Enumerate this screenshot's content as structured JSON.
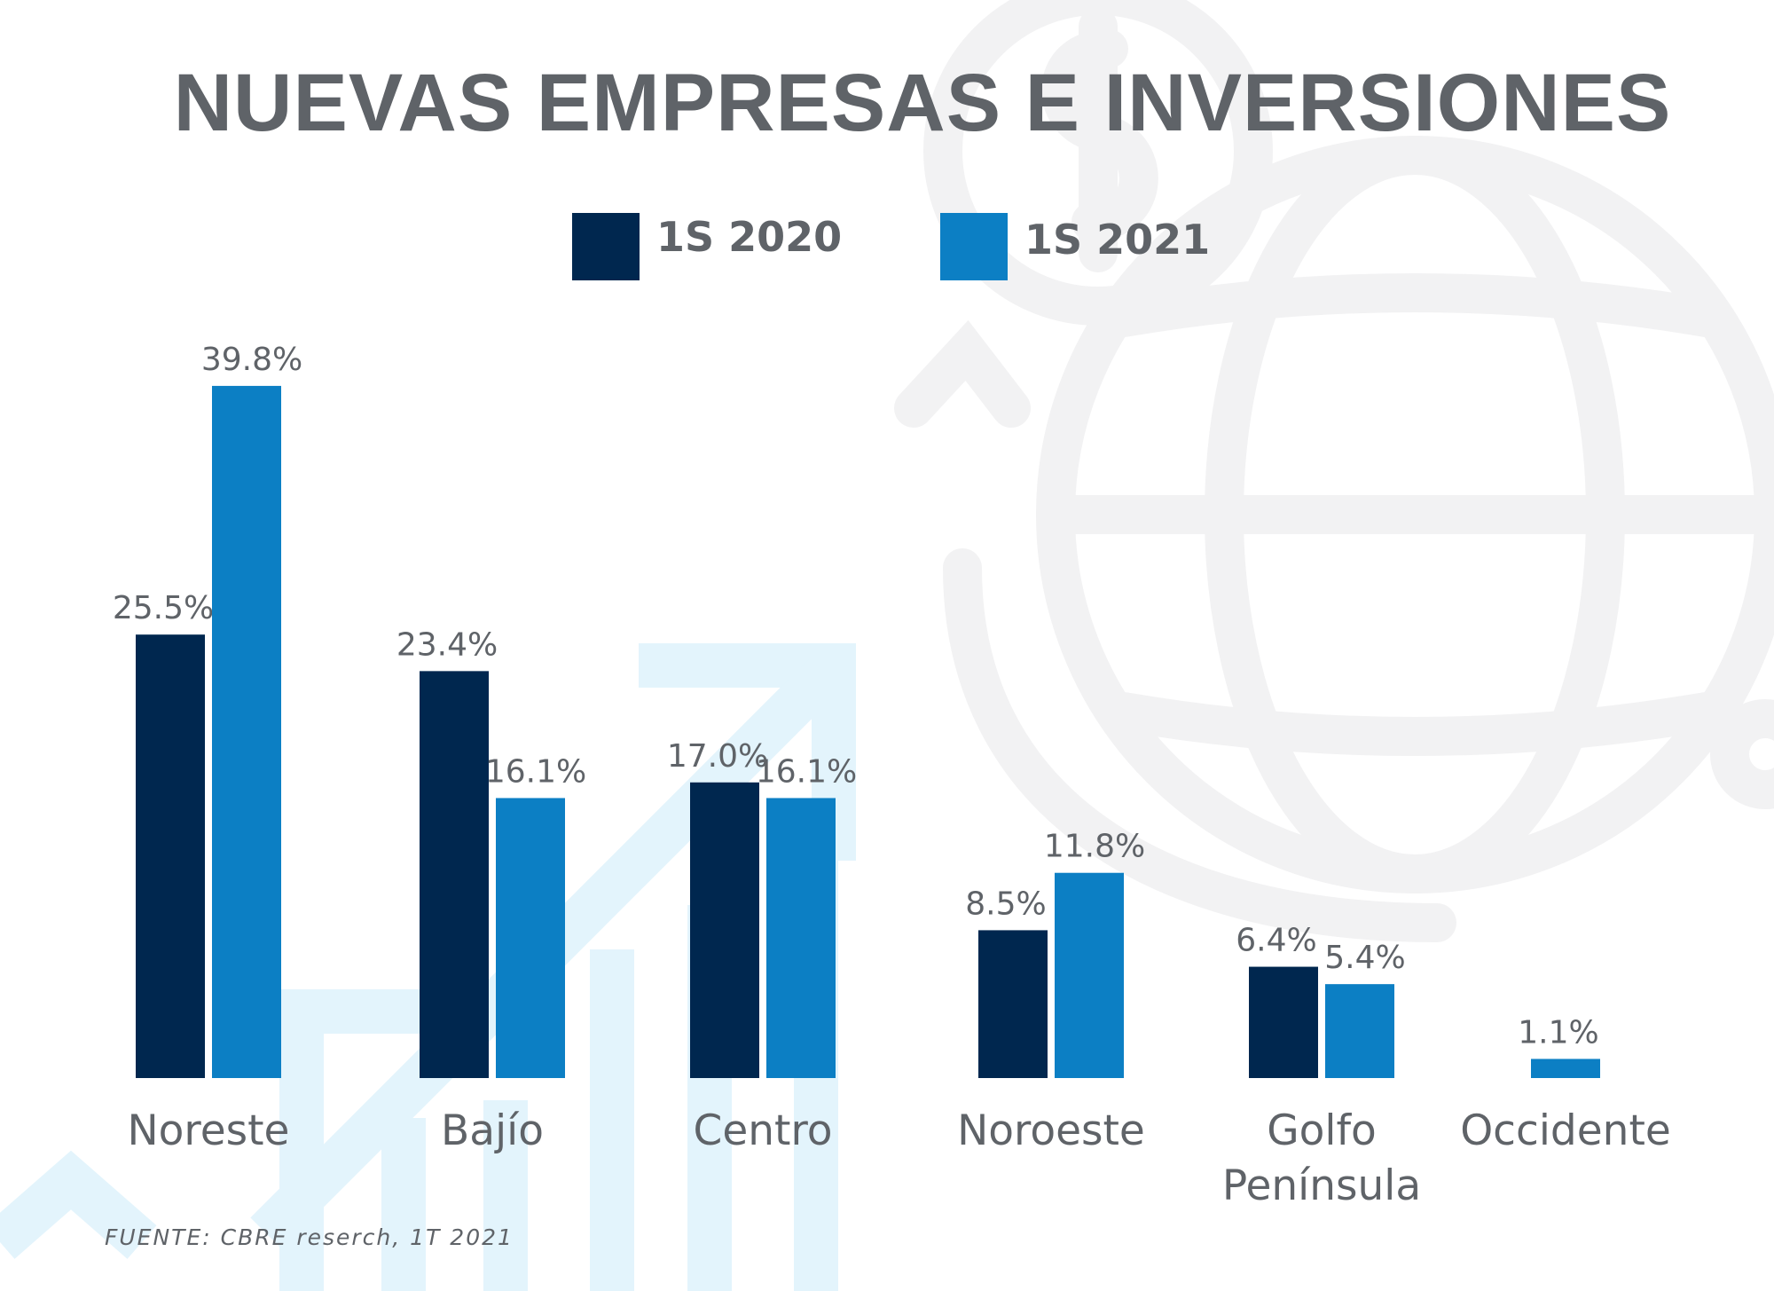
{
  "title": "NUEVAS EMPRESAS E INVERSIONES",
  "source": "FUENTE: CBRE reserch, 1T 2021",
  "colors": {
    "series_2020": "#00274f",
    "series_2021": "#0c7fc4",
    "text": "#5f6368",
    "bg_globe": "#f2f2f3",
    "bg_arrows": "#e3f4fc"
  },
  "legend": [
    {
      "label": "1S 2020"
    },
    {
      "label": "1S 2021"
    }
  ],
  "chart_data": {
    "type": "bar",
    "title": "NUEVAS EMPRESAS E INVERSIONES",
    "categories": [
      [
        "Noreste"
      ],
      [
        "Bajío"
      ],
      [
        "Centro"
      ],
      [
        "Noroeste"
      ],
      [
        "Golfo",
        "Península"
      ],
      [
        "Occidente"
      ]
    ],
    "series": [
      {
        "name": "1S 2020",
        "values": [
          25.5,
          23.4,
          17.0,
          8.5,
          6.4,
          null
        ],
        "labels": [
          "25.5%",
          "23.4%",
          "17.0%",
          "8.5%",
          "6.4%",
          ""
        ]
      },
      {
        "name": "1S 2021",
        "values": [
          39.8,
          16.1,
          16.1,
          11.8,
          5.4,
          1.1
        ],
        "labels": [
          "39.8%",
          "16.1%",
          "16.1%",
          "11.8%",
          "5.4%",
          "1.1%"
        ]
      }
    ],
    "ylim": [
      0,
      40
    ],
    "unit": "%",
    "xlabel": "",
    "ylabel": "",
    "grid": false,
    "legend_position": "top"
  }
}
